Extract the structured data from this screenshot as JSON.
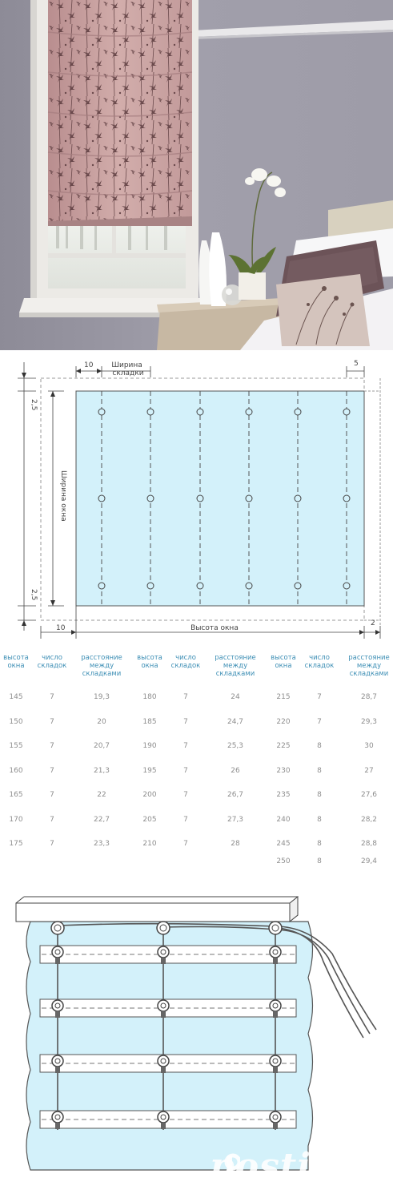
{
  "diagram1": {
    "dim_top_left": "10",
    "fold_width_label": "Ширина складки",
    "dim_top_right": "5",
    "dim_side_top": "2,5",
    "dim_side_bottom": "2,5",
    "window_width_label": "Ширина окна",
    "dim_bottom_left": "10",
    "window_height_label": "Высота окна",
    "dim_bottom_right": "2"
  },
  "table": {
    "headers": {
      "height": "высота окна",
      "folds": "число складок",
      "distance": "расстояние между складками"
    },
    "columns": [
      {
        "rows": [
          [
            "145",
            "7",
            "19,3"
          ],
          [
            "150",
            "7",
            "20"
          ],
          [
            "155",
            "7",
            "20,7"
          ],
          [
            "160",
            "7",
            "21,3"
          ],
          [
            "165",
            "7",
            "22"
          ],
          [
            "170",
            "7",
            "22,7"
          ],
          [
            "175",
            "7",
            "23,3"
          ]
        ]
      },
      {
        "rows": [
          [
            "180",
            "7",
            "24"
          ],
          [
            "185",
            "7",
            "24,7"
          ],
          [
            "190",
            "7",
            "25,3"
          ],
          [
            "195",
            "7",
            "26"
          ],
          [
            "200",
            "7",
            "26,7"
          ],
          [
            "205",
            "7",
            "27,3"
          ],
          [
            "210",
            "7",
            "28"
          ]
        ]
      },
      {
        "rows": [
          [
            "215",
            "7",
            "28,7"
          ],
          [
            "220",
            "7",
            "29,3"
          ],
          [
            "225",
            "8",
            "30"
          ],
          [
            "230",
            "8",
            "27"
          ],
          [
            "235",
            "8",
            "27,6"
          ],
          [
            "240",
            "8",
            "28,2"
          ],
          [
            "245",
            "8",
            "28,8"
          ],
          [
            "250",
            "8",
            "29,4"
          ]
        ]
      }
    ]
  },
  "watermark": {
    "text": "postila.ru",
    "icon": "postila-logo-icon"
  },
  "colors": {
    "fabric_blue": "#d3f1fa",
    "header_blue": "#3e8fb5",
    "table_value": "#8e8e8e",
    "wall_gray": "#9c9aa6",
    "blind_pink": "#c9a1a1"
  }
}
